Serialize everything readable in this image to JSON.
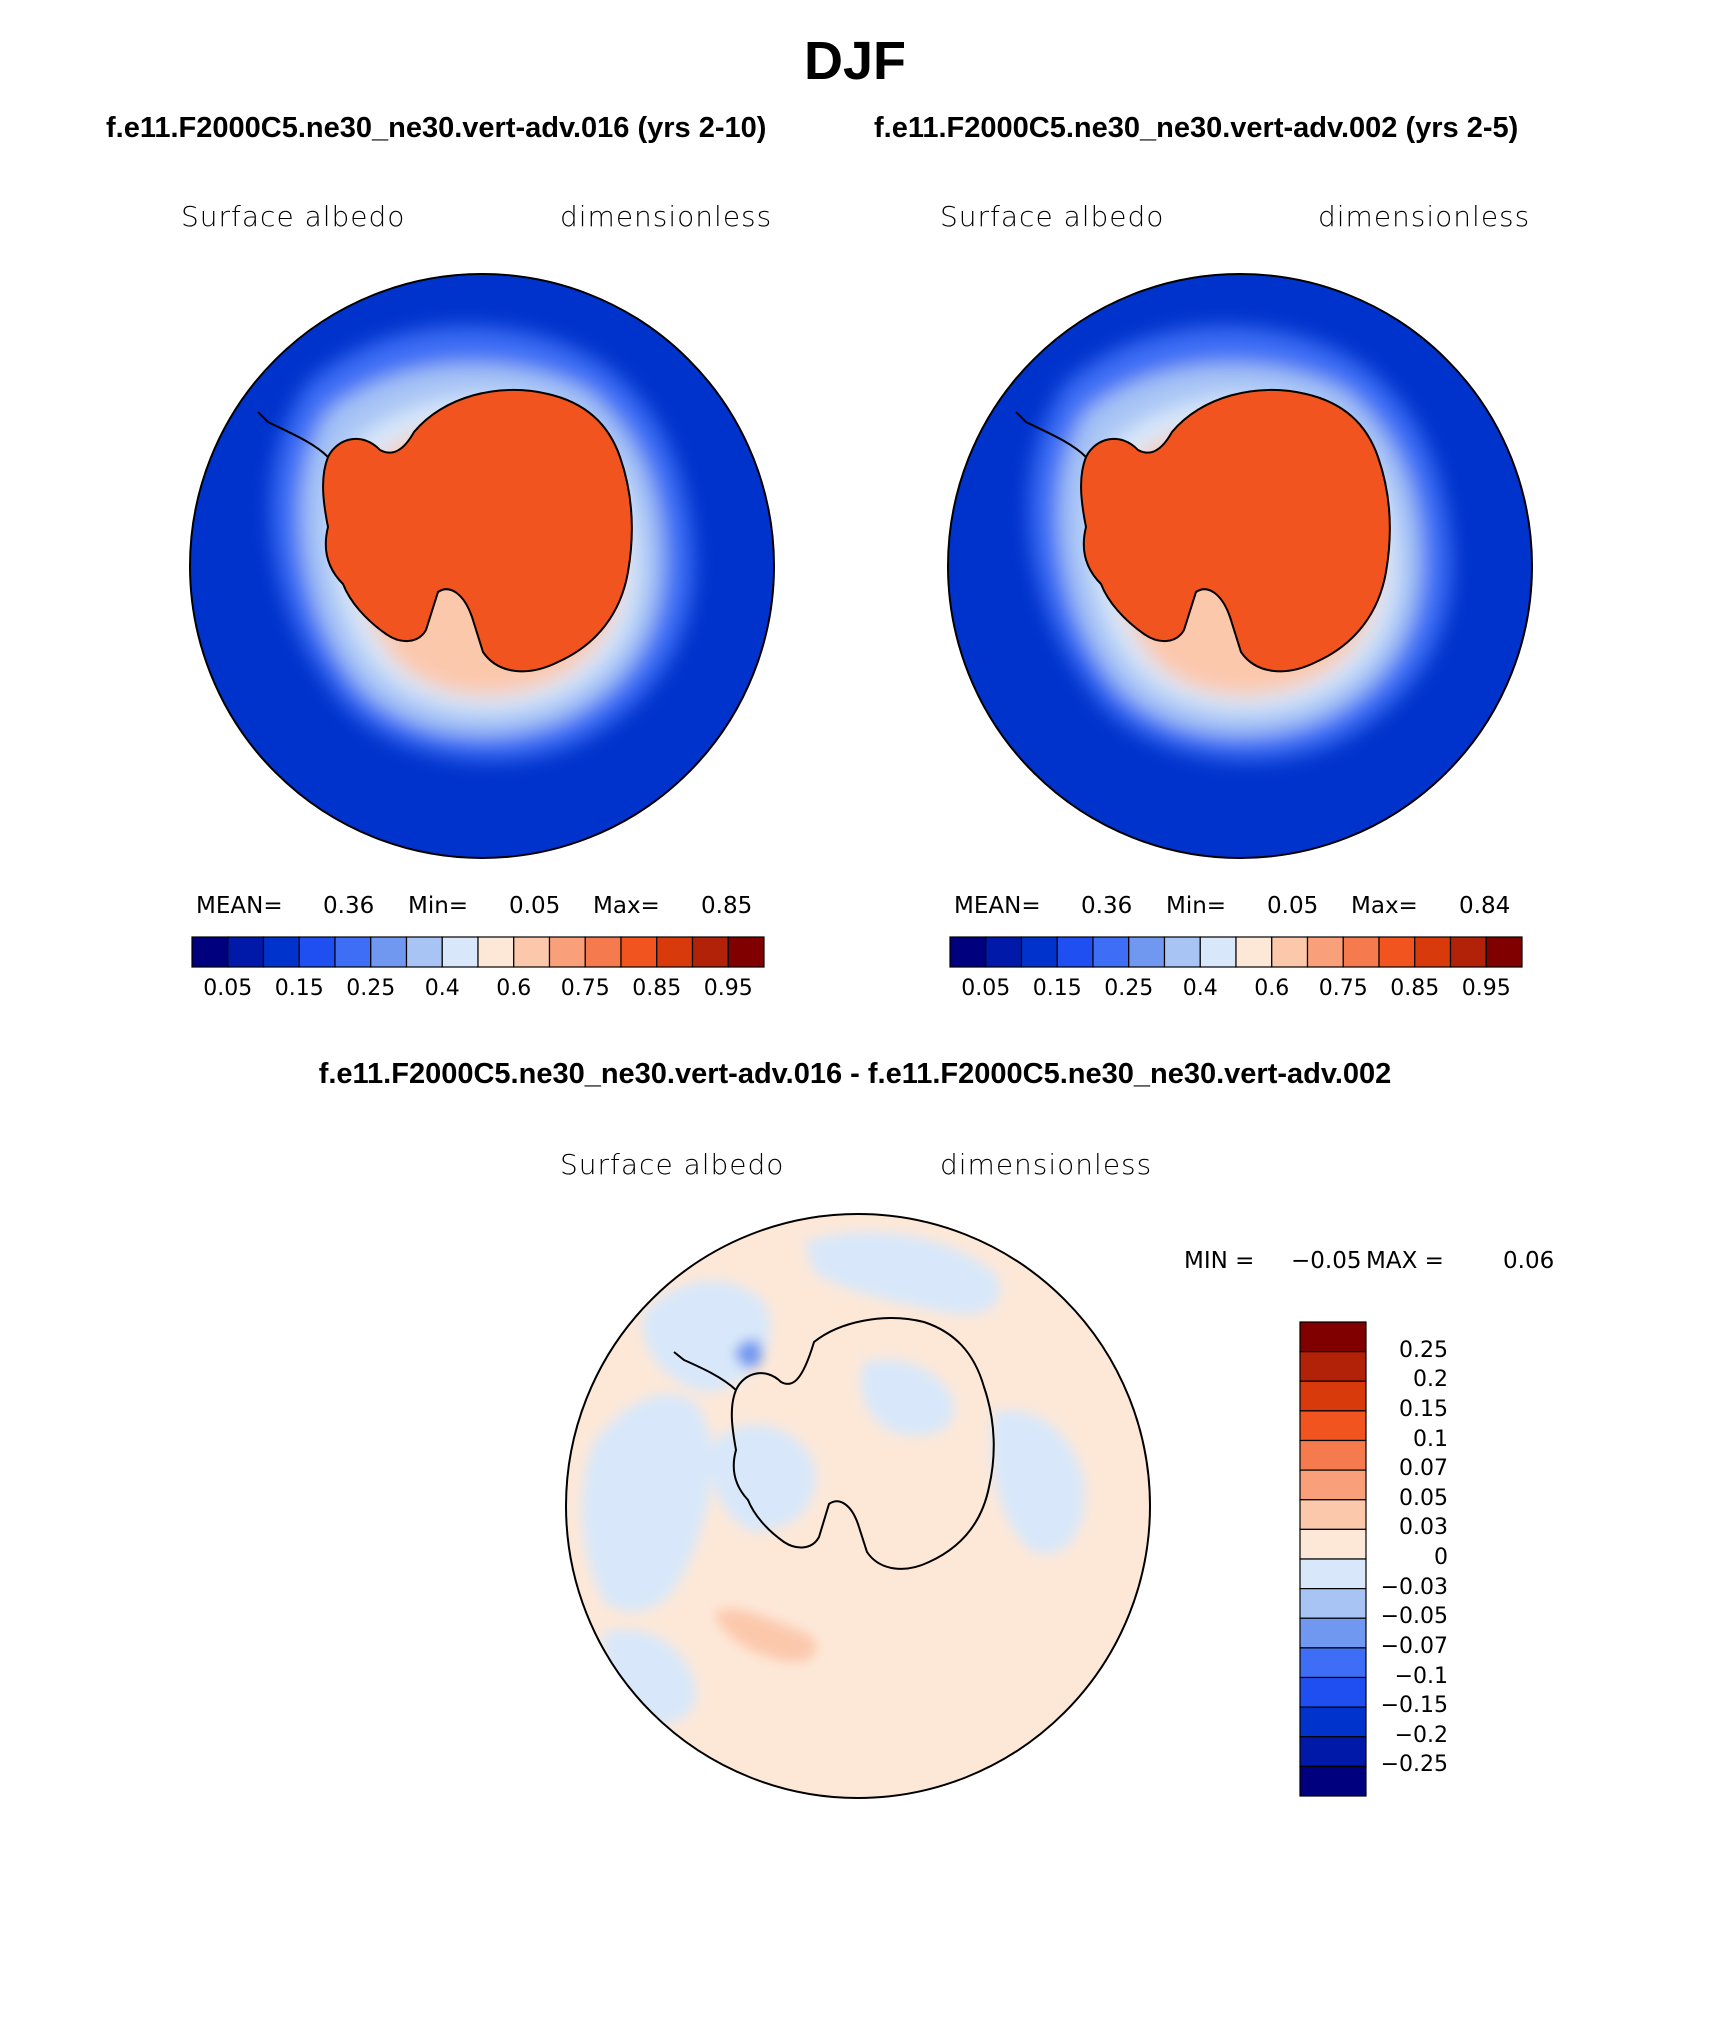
{
  "figure": {
    "season": "DJF",
    "case_titles": [
      "f.e11.F2000C5.ne30_ne30.vert-adv.016 (yrs 2-10)",
      "f.e11.F2000C5.ne30_ne30.vert-adv.002 (yrs 2-5)"
    ],
    "diff_title": "f.e11.F2000C5.ne30_ne30.vert-adv.016 - f.e11.F2000C5.ne30_ne30.vert-adv.002"
  },
  "panels": [
    {
      "variable": "Surface albedo",
      "units": "dimensionless",
      "mean_label": "MEAN=",
      "mean_value": "0.36",
      "min_label": "Min=",
      "min_value": "0.05",
      "max_label": "Max=",
      "max_value": "0.85"
    },
    {
      "variable": "Surface albedo",
      "units": "dimensionless",
      "mean_label": "MEAN=",
      "mean_value": "0.36",
      "min_label": "Min=",
      "min_value": "0.05",
      "max_label": "Max=",
      "max_value": "0.84"
    }
  ],
  "diff_panel": {
    "variable": "Surface albedo",
    "units": "dimensionless",
    "min_label": "MIN =",
    "min_value": "−0.05",
    "max_label": "MAX =",
    "max_value": "0.06"
  },
  "colorbar_main": {
    "colors": [
      "#00007f",
      "#0019a8",
      "#0033cc",
      "#1f4ff0",
      "#3d6ef5",
      "#7198f0",
      "#a7c4f5",
      "#d8e8fa",
      "#fde8d8",
      "#fcc8ac",
      "#f9a07a",
      "#f57b4e",
      "#f2541f",
      "#d93a0c",
      "#b22208",
      "#800000"
    ],
    "tick_labels": [
      "0.05",
      "0.15",
      "0.25",
      "0.4",
      "0.6",
      "0.75",
      "0.85",
      "0.95"
    ]
  },
  "colorbar_diff": {
    "colors": [
      "#00007f",
      "#0019a8",
      "#0033cc",
      "#1f4ff0",
      "#3d6ef5",
      "#7198f0",
      "#a7c4f5",
      "#d8e8fa",
      "#fde8d8",
      "#fcc8ac",
      "#f9a07a",
      "#f57b4e",
      "#f2541f",
      "#d93a0c",
      "#b22208",
      "#800000"
    ],
    "tick_labels": [
      "0.25",
      "0.2",
      "0.15",
      "0.1",
      "0.07",
      "0.05",
      "0.03",
      "0",
      "−0.03",
      "−0.05",
      "−0.07",
      "−0.1",
      "−0.15",
      "−0.2",
      "−0.25"
    ]
  },
  "map_colors": {
    "ocean": "#0033cc",
    "ice_high": "#f2541f",
    "diff_pos": "#fde8d8",
    "diff_neg": "#d8e8fa"
  }
}
